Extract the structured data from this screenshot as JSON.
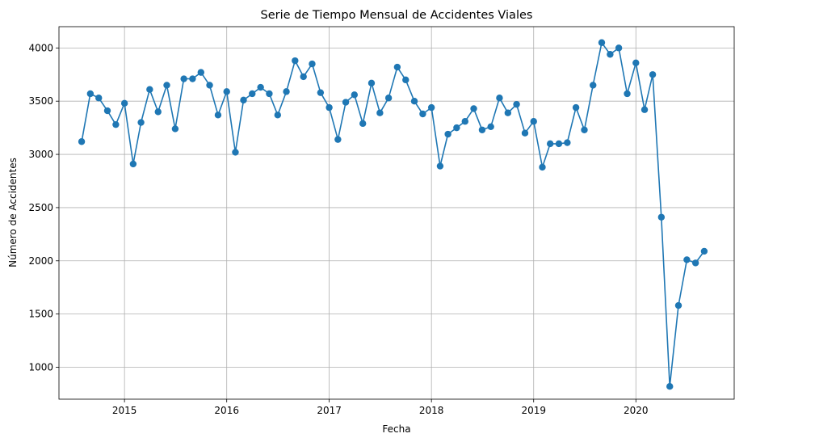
{
  "chart_data": {
    "type": "line",
    "title": "Serie de Tiempo Mensual de Accidentes Viales",
    "xlabel": "Fecha",
    "ylabel": "Número de Accidentes",
    "x_ticks": [
      "2015",
      "2016",
      "2017",
      "2018",
      "2019",
      "2020"
    ],
    "y_ticks": [
      1000,
      1500,
      2000,
      2500,
      3000,
      3500,
      4000
    ],
    "xlim": [
      "2014-05-12",
      "2020-12-17"
    ],
    "ylim": [
      700,
      4200
    ],
    "grid": true,
    "color": "#1f77b4",
    "marker": "circle",
    "x": [
      "2014-08",
      "2014-09",
      "2014-10",
      "2014-11",
      "2014-12",
      "2015-01",
      "2015-02",
      "2015-03",
      "2015-04",
      "2015-05",
      "2015-06",
      "2015-07",
      "2015-08",
      "2015-09",
      "2015-10",
      "2015-11",
      "2015-12",
      "2016-01",
      "2016-02",
      "2016-03",
      "2016-04",
      "2016-05",
      "2016-06",
      "2016-07",
      "2016-08",
      "2016-09",
      "2016-10",
      "2016-11",
      "2016-12",
      "2017-01",
      "2017-02",
      "2017-03",
      "2017-04",
      "2017-05",
      "2017-06",
      "2017-07",
      "2017-08",
      "2017-09",
      "2017-10",
      "2017-11",
      "2017-12",
      "2018-01",
      "2018-02",
      "2018-03",
      "2018-04",
      "2018-05",
      "2018-06",
      "2018-07",
      "2018-08",
      "2018-09",
      "2018-10",
      "2018-11",
      "2018-12",
      "2019-01",
      "2019-02",
      "2019-03",
      "2019-04",
      "2019-05",
      "2019-06",
      "2019-07",
      "2019-08",
      "2019-09",
      "2019-10",
      "2019-11",
      "2019-12",
      "2020-01",
      "2020-02",
      "2020-03",
      "2020-04",
      "2020-05",
      "2020-06",
      "2020-07",
      "2020-08",
      "2020-09"
    ],
    "values": [
      3120,
      3570,
      3530,
      3410,
      3280,
      3480,
      2910,
      3300,
      3610,
      3400,
      3650,
      3240,
      3710,
      3710,
      3770,
      3650,
      3370,
      3590,
      3020,
      3510,
      3570,
      3630,
      3570,
      3370,
      3590,
      3880,
      3730,
      3850,
      3580,
      3440,
      3140,
      3490,
      3560,
      3290,
      3670,
      3390,
      3530,
      3820,
      3700,
      3500,
      3380,
      3440,
      2890,
      3190,
      3250,
      3310,
      3430,
      3230,
      3260,
      3530,
      3390,
      3470,
      3200,
      3310,
      2880,
      3100,
      3100,
      3110,
      3440,
      3230,
      3650,
      4050,
      3940,
      4000,
      3570,
      3860,
      3420,
      3750,
      2410,
      820,
      1580,
      2010,
      1980,
      2090
    ]
  }
}
